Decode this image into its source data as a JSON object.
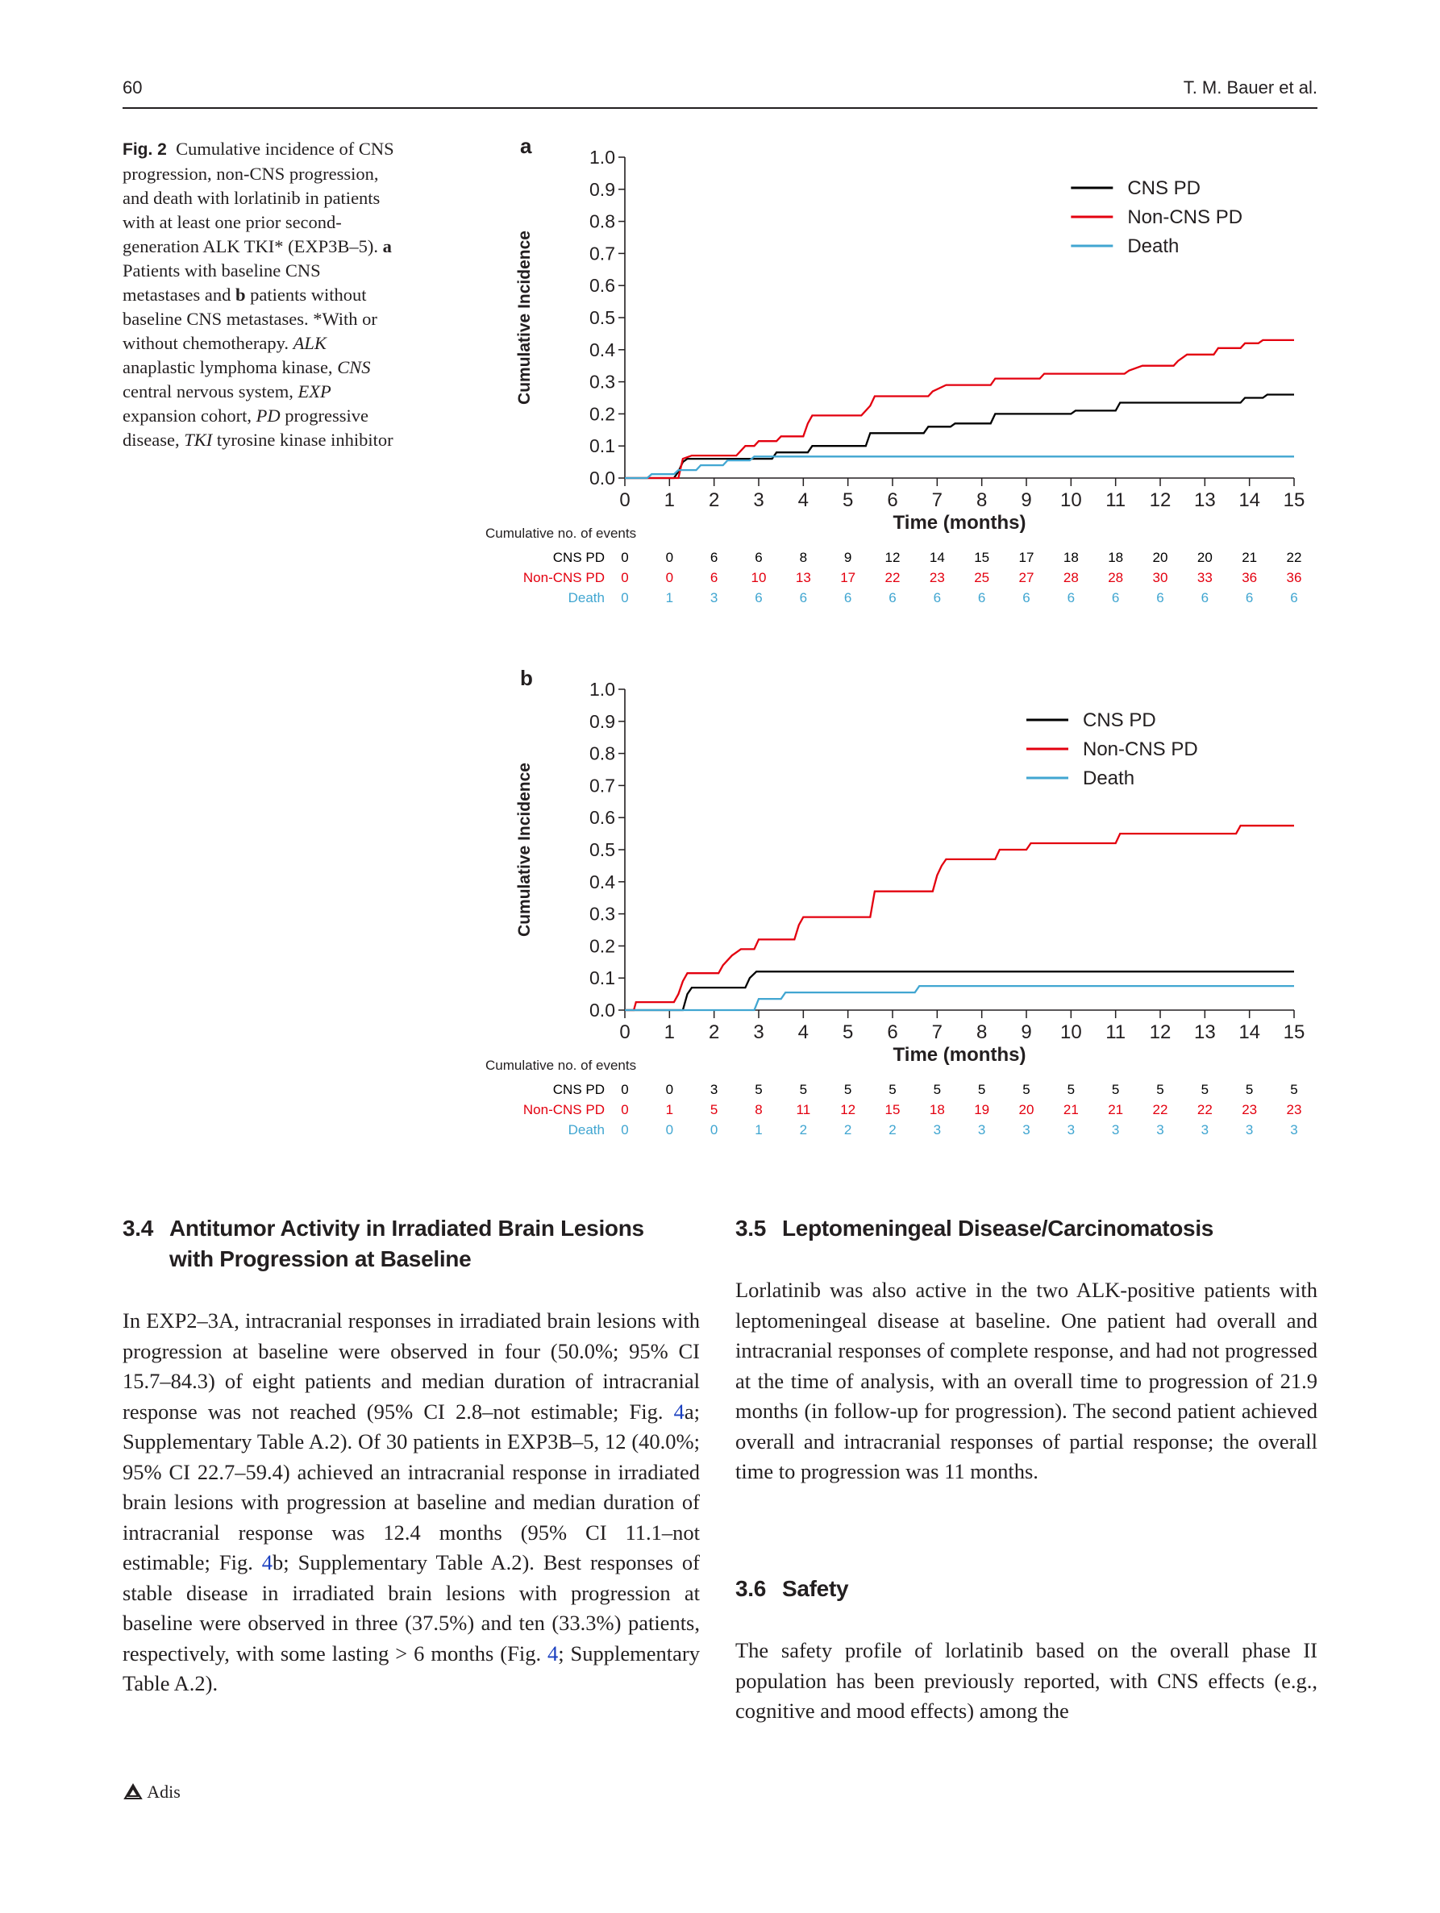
{
  "header": {
    "page_number": "60",
    "authors": "T. M. Bauer et al."
  },
  "caption": {
    "fig_label": "Fig. 2",
    "text_1": "Cumulative incidence of CNS progression, non-CNS progression, and death with lorlatinib in patients with at least one prior second-generation ALK TKI* (EXP3B–5).",
    "a_label": "a",
    "text_2": "Patients with baseline CNS metastases and",
    "b_label": "b",
    "text_3": "patients without baseline CNS metastases. *With or without chemotherapy.",
    "abbr_alk": "ALK",
    "def_alk": "anaplastic lymphoma kinase,",
    "abbr_cns": "CNS",
    "def_cns": "central nervous system,",
    "abbr_exp": "EXP",
    "def_exp": "expansion cohort,",
    "abbr_pd": "PD",
    "def_pd": "progressive disease,",
    "abbr_tki": "TKI",
    "def_tki": "tyrosine kinase inhibitor"
  },
  "chart_data": [
    {
      "panel": "a",
      "type": "line",
      "step": true,
      "xlabel": "Time (months)",
      "ylabel": "Cumulative Incidence",
      "xlim": [
        0,
        15
      ],
      "ylim": [
        0,
        1.0
      ],
      "x_ticks": [
        "0",
        "1",
        "2",
        "3",
        "4",
        "5",
        "6",
        "7",
        "8",
        "9",
        "10",
        "11",
        "12",
        "13",
        "14",
        "15"
      ],
      "y_ticks": [
        "0.0",
        "0.1",
        "0.2",
        "0.3",
        "0.4",
        "0.5",
        "0.6",
        "0.7",
        "0.8",
        "0.9",
        "1.0"
      ],
      "legend_position": "top-right",
      "series": [
        {
          "name": "CNS PD",
          "color": "#000000",
          "points": [
            [
              0,
              0
            ],
            [
              1.1,
              0
            ],
            [
              1.2,
              0.02
            ],
            [
              1.3,
              0.05
            ],
            [
              1.4,
              0.06
            ],
            [
              3.3,
              0.06
            ],
            [
              3.4,
              0.08
            ],
            [
              4.1,
              0.08
            ],
            [
              4.2,
              0.1
            ],
            [
              5.4,
              0.1
            ],
            [
              5.5,
              0.14
            ],
            [
              6.7,
              0.14
            ],
            [
              6.8,
              0.16
            ],
            [
              7.3,
              0.16
            ],
            [
              7.4,
              0.17
            ],
            [
              8.2,
              0.17
            ],
            [
              8.3,
              0.2
            ],
            [
              10.0,
              0.2
            ],
            [
              10.1,
              0.21
            ],
            [
              11.0,
              0.21
            ],
            [
              11.1,
              0.235
            ],
            [
              13.8,
              0.235
            ],
            [
              13.9,
              0.25
            ],
            [
              14.3,
              0.25
            ],
            [
              14.4,
              0.26
            ],
            [
              15.0,
              0.26
            ]
          ]
        },
        {
          "name": "Non-CNS PD",
          "color": "#e3000f",
          "points": [
            [
              0,
              0
            ],
            [
              1.2,
              0
            ],
            [
              1.3,
              0.06
            ],
            [
              1.5,
              0.07
            ],
            [
              2.5,
              0.07
            ],
            [
              2.7,
              0.1
            ],
            [
              2.9,
              0.1
            ],
            [
              3.0,
              0.115
            ],
            [
              3.4,
              0.115
            ],
            [
              3.5,
              0.13
            ],
            [
              4.0,
              0.13
            ],
            [
              4.1,
              0.17
            ],
            [
              4.2,
              0.195
            ],
            [
              5.3,
              0.195
            ],
            [
              5.5,
              0.225
            ],
            [
              5.6,
              0.255
            ],
            [
              6.8,
              0.255
            ],
            [
              6.9,
              0.27
            ],
            [
              7.2,
              0.29
            ],
            [
              8.2,
              0.29
            ],
            [
              8.3,
              0.31
            ],
            [
              9.3,
              0.31
            ],
            [
              9.4,
              0.325
            ],
            [
              11.2,
              0.325
            ],
            [
              11.3,
              0.335
            ],
            [
              11.6,
              0.35
            ],
            [
              12.3,
              0.35
            ],
            [
              12.4,
              0.365
            ],
            [
              12.6,
              0.385
            ],
            [
              13.2,
              0.385
            ],
            [
              13.3,
              0.405
            ],
            [
              13.8,
              0.405
            ],
            [
              13.9,
              0.42
            ],
            [
              14.2,
              0.42
            ],
            [
              14.3,
              0.43
            ],
            [
              15.0,
              0.43
            ]
          ]
        },
        {
          "name": "Death",
          "color": "#41a6d1",
          "points": [
            [
              0,
              0
            ],
            [
              0.5,
              0
            ],
            [
              0.6,
              0.012
            ],
            [
              1.1,
              0.012
            ],
            [
              1.2,
              0.025
            ],
            [
              1.6,
              0.025
            ],
            [
              1.7,
              0.04
            ],
            [
              2.2,
              0.04
            ],
            [
              2.3,
              0.055
            ],
            [
              2.8,
              0.055
            ],
            [
              2.9,
              0.067
            ],
            [
              15.0,
              0.067
            ]
          ]
        }
      ],
      "risk_table": {
        "title": "Cumulative no. of events",
        "rows": [
          {
            "label": "CNS PD",
            "color": "#000000",
            "values": [
              "0",
              "0",
              "6",
              "6",
              "8",
              "9",
              "12",
              "14",
              "15",
              "17",
              "18",
              "18",
              "20",
              "20",
              "21",
              "22"
            ]
          },
          {
            "label": "Non-CNS PD",
            "color": "#e3000f",
            "values": [
              "0",
              "0",
              "6",
              "10",
              "13",
              "17",
              "22",
              "23",
              "25",
              "27",
              "28",
              "28",
              "30",
              "33",
              "36",
              "36"
            ]
          },
          {
            "label": "Death",
            "color": "#41a6d1",
            "values": [
              "0",
              "1",
              "3",
              "6",
              "6",
              "6",
              "6",
              "6",
              "6",
              "6",
              "6",
              "6",
              "6",
              "6",
              "6",
              "6"
            ]
          }
        ]
      }
    },
    {
      "panel": "b",
      "type": "line",
      "step": true,
      "xlabel": "Time (months)",
      "ylabel": "Cumulative Incidence",
      "xlim": [
        0,
        15
      ],
      "ylim": [
        0,
        1.0
      ],
      "x_ticks": [
        "0",
        "1",
        "2",
        "3",
        "4",
        "5",
        "6",
        "7",
        "8",
        "9",
        "10",
        "11",
        "12",
        "13",
        "14",
        "15"
      ],
      "y_ticks": [
        "0.0",
        "0.1",
        "0.2",
        "0.3",
        "0.4",
        "0.5",
        "0.6",
        "0.7",
        "0.8",
        "0.9",
        "1.0"
      ],
      "legend_position": "top-right",
      "series": [
        {
          "name": "CNS PD",
          "color": "#000000",
          "points": [
            [
              0,
              0
            ],
            [
              1.3,
              0
            ],
            [
              1.4,
              0.05
            ],
            [
              1.5,
              0.07
            ],
            [
              2.7,
              0.07
            ],
            [
              2.8,
              0.1
            ],
            [
              2.95,
              0.12
            ],
            [
              15.0,
              0.12
            ]
          ]
        },
        {
          "name": "Non-CNS PD",
          "color": "#e3000f",
          "points": [
            [
              0,
              0
            ],
            [
              0.2,
              0
            ],
            [
              0.25,
              0.025
            ],
            [
              1.1,
              0.025
            ],
            [
              1.2,
              0.05
            ],
            [
              1.3,
              0.09
            ],
            [
              1.4,
              0.115
            ],
            [
              2.1,
              0.115
            ],
            [
              2.2,
              0.14
            ],
            [
              2.4,
              0.17
            ],
            [
              2.6,
              0.19
            ],
            [
              2.9,
              0.19
            ],
            [
              3.0,
              0.22
            ],
            [
              3.8,
              0.22
            ],
            [
              3.9,
              0.265
            ],
            [
              4.0,
              0.29
            ],
            [
              5.5,
              0.29
            ],
            [
              5.6,
              0.37
            ],
            [
              6.9,
              0.37
            ],
            [
              7.0,
              0.42
            ],
            [
              7.1,
              0.45
            ],
            [
              7.2,
              0.47
            ],
            [
              8.3,
              0.47
            ],
            [
              8.4,
              0.5
            ],
            [
              9.0,
              0.5
            ],
            [
              9.1,
              0.52
            ],
            [
              11.0,
              0.52
            ],
            [
              11.1,
              0.55
            ],
            [
              13.7,
              0.55
            ],
            [
              13.8,
              0.575
            ],
            [
              15.0,
              0.575
            ]
          ]
        },
        {
          "name": "Death",
          "color": "#41a6d1",
          "points": [
            [
              0,
              0
            ],
            [
              2.9,
              0
            ],
            [
              3.0,
              0.035
            ],
            [
              3.5,
              0.035
            ],
            [
              3.6,
              0.055
            ],
            [
              6.5,
              0.055
            ],
            [
              6.6,
              0.075
            ],
            [
              15.0,
              0.075
            ]
          ]
        }
      ],
      "risk_table": {
        "title": "Cumulative no. of events",
        "rows": [
          {
            "label": "CNS PD",
            "color": "#000000",
            "values": [
              "0",
              "0",
              "3",
              "5",
              "5",
              "5",
              "5",
              "5",
              "5",
              "5",
              "5",
              "5",
              "5",
              "5",
              "5",
              "5"
            ]
          },
          {
            "label": "Non-CNS PD",
            "color": "#e3000f",
            "values": [
              "0",
              "1",
              "5",
              "8",
              "11",
              "12",
              "15",
              "18",
              "19",
              "20",
              "21",
              "21",
              "22",
              "22",
              "23",
              "23"
            ]
          },
          {
            "label": "Death",
            "color": "#41a6d1",
            "values": [
              "0",
              "0",
              "0",
              "1",
              "2",
              "2",
              "2",
              "3",
              "3",
              "3",
              "3",
              "3",
              "3",
              "3",
              "3",
              "3"
            ]
          }
        ]
      }
    }
  ],
  "sections": {
    "s34": {
      "number": "3.4",
      "title_line1": "Antitumor Activity in Irradiated Brain Lesions",
      "title_line2": "with Progression at Baseline",
      "text_a": "In EXP2–3A, intracranial responses in irradiated brain lesions with progression at baseline were observed in four (50.0%; 95% CI 15.7–84.3) of eight patients and median duration of intracranial response was not reached (95% CI 2.8–not estimable; Fig.",
      "ref1": "4",
      "text_b": "a; Supplementary Table A.2). Of 30 patients in EXP3B–5, 12 (40.0%; 95% CI 22.7–59.4) achieved an intracranial response in irradiated brain lesions with progression at baseline and median duration of intracranial response was 12.4 months (95% CI 11.1–not estimable; Fig.",
      "ref2": "4",
      "text_c": "b; Supplementary Table A.2). Best responses of stable disease in irradiated brain lesions with progression at baseline were observed in three (37.5%) and ten (33.3%) patients, respectively, with some lasting > 6 months (Fig.",
      "ref3": "4",
      "text_d": "; Supplementary Table A.2)."
    },
    "s35": {
      "number": "3.5",
      "title": "Leptomeningeal Disease/Carcinomatosis",
      "text": "Lorlatinib was also active in the two ALK-positive patients with leptomeningeal disease at baseline. One patient had overall and intracranial responses of complete response, and had not progressed at the time of analysis, with an overall time to progression of 21.9 months (in follow-up for progression). The second patient achieved overall and intracranial responses of partial response; the overall time to progression was 11 months."
    },
    "s36": {
      "number": "3.6",
      "title": "Safety",
      "text": "The safety profile of lorlatinib based on the overall phase II population has been previously reported, with CNS effects (e.g., cognitive and mood effects) among the"
    }
  },
  "footer": {
    "publisher": "Adis",
    "logo_icon": "adis-triangle-logo"
  }
}
